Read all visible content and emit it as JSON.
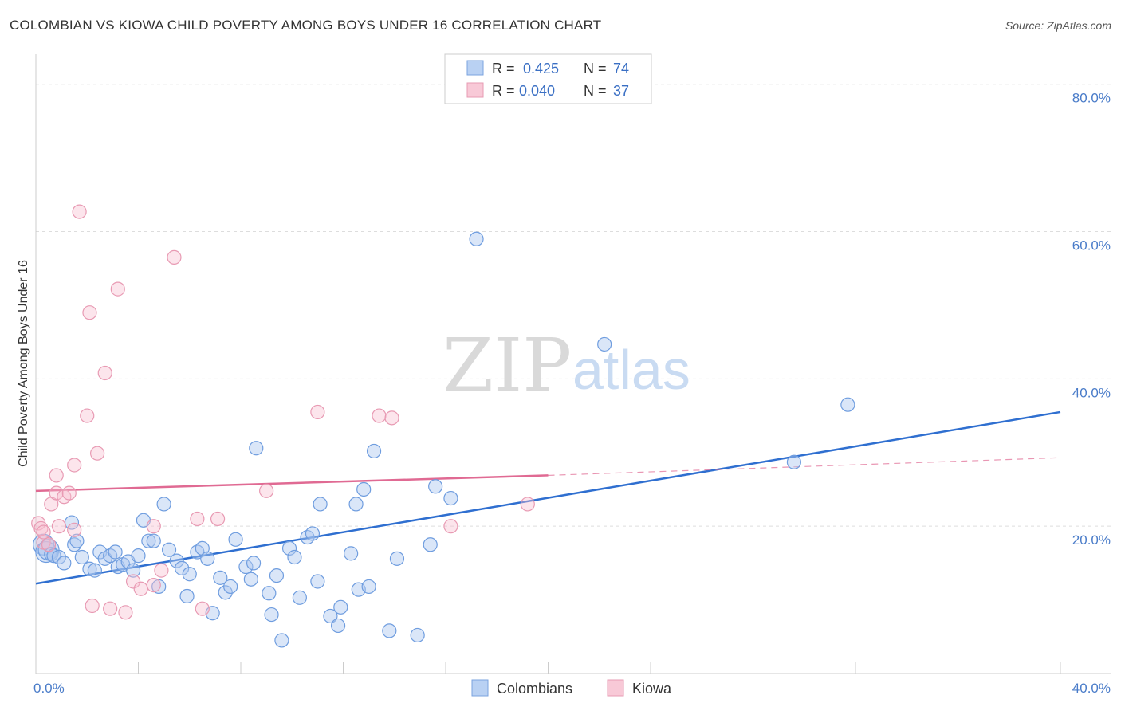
{
  "title": "COLOMBIAN VS KIOWA CHILD POVERTY AMONG BOYS UNDER 16 CORRELATION CHART",
  "source": "Source: ZipAtlas.com",
  "watermark": {
    "zip": "ZIP",
    "atlas": "atlas"
  },
  "legend_top": [
    {
      "r_label": "R =",
      "r_value": "0.425",
      "n_label": "N =",
      "n_value": "74"
    },
    {
      "r_label": "R =",
      "r_value": "0.040",
      "n_label": "N =",
      "n_value": "37"
    }
  ],
  "chart_data": {
    "type": "scatter",
    "ylabel": "Child Poverty Among Boys Under 16",
    "x_tick_labels": [
      "0.0%",
      "40.0%"
    ],
    "y_tick_labels": [
      "20.0%",
      "40.0%",
      "60.0%",
      "80.0%"
    ],
    "xlim": [
      0,
      40
    ],
    "ylim": [
      0,
      83
    ],
    "grid": true,
    "legend_position": "top-center",
    "colors": {
      "colombians": "#5b8fd9",
      "kiowa": "#e88aa8",
      "blue_line": "#2f6fd0",
      "pink_line": "#e06a93"
    },
    "series": [
      {
        "name": "Colombians",
        "trend": {
          "x0": 0,
          "y0": 12.2,
          "x1": 40,
          "y1": 35.5
        },
        "points": [
          [
            0.3,
            17.5
          ],
          [
            0.4,
            16.5
          ],
          [
            0.5,
            16.8
          ],
          [
            0.6,
            16.2
          ],
          [
            0.7,
            16.0
          ],
          [
            0.9,
            15.8
          ],
          [
            1.1,
            15.0
          ],
          [
            1.4,
            20.5
          ],
          [
            1.5,
            17.5
          ],
          [
            1.6,
            18.0
          ],
          [
            1.8,
            15.8
          ],
          [
            2.1,
            14.2
          ],
          [
            2.3,
            14.0
          ],
          [
            2.5,
            16.5
          ],
          [
            2.7,
            15.6
          ],
          [
            2.9,
            16.0
          ],
          [
            3.1,
            16.5
          ],
          [
            3.2,
            14.5
          ],
          [
            3.4,
            14.8
          ],
          [
            3.6,
            15.2
          ],
          [
            3.8,
            14.0
          ],
          [
            4.0,
            16.0
          ],
          [
            4.2,
            20.8
          ],
          [
            4.4,
            18.0
          ],
          [
            4.6,
            18.0
          ],
          [
            4.8,
            11.8
          ],
          [
            5.0,
            23.0
          ],
          [
            5.2,
            16.8
          ],
          [
            5.5,
            15.3
          ],
          [
            5.7,
            14.3
          ],
          [
            5.9,
            10.5
          ],
          [
            6.0,
            13.5
          ],
          [
            6.3,
            16.5
          ],
          [
            6.5,
            17.0
          ],
          [
            6.7,
            15.6
          ],
          [
            6.9,
            8.2
          ],
          [
            7.2,
            13.0
          ],
          [
            7.4,
            11.0
          ],
          [
            7.6,
            11.8
          ],
          [
            7.8,
            18.2
          ],
          [
            8.2,
            14.5
          ],
          [
            8.4,
            12.8
          ],
          [
            8.5,
            15.0
          ],
          [
            8.6,
            30.6
          ],
          [
            9.1,
            10.9
          ],
          [
            9.2,
            8.0
          ],
          [
            9.4,
            13.3
          ],
          [
            9.6,
            4.5
          ],
          [
            9.9,
            17.0
          ],
          [
            10.1,
            15.8
          ],
          [
            10.3,
            10.3
          ],
          [
            10.6,
            18.5
          ],
          [
            10.8,
            19.0
          ],
          [
            11.0,
            12.5
          ],
          [
            11.1,
            23.0
          ],
          [
            11.5,
            7.8
          ],
          [
            11.8,
            6.5
          ],
          [
            11.9,
            9.0
          ],
          [
            12.3,
            16.3
          ],
          [
            12.5,
            23.0
          ],
          [
            12.6,
            11.4
          ],
          [
            12.8,
            25.0
          ],
          [
            13.0,
            11.8
          ],
          [
            13.2,
            30.2
          ],
          [
            13.8,
            5.8
          ],
          [
            14.1,
            15.6
          ],
          [
            14.9,
            5.2
          ],
          [
            15.4,
            17.5
          ],
          [
            15.6,
            25.4
          ],
          [
            16.2,
            23.8
          ],
          [
            17.2,
            59.0
          ],
          [
            22.2,
            44.7
          ],
          [
            29.6,
            28.7
          ],
          [
            31.7,
            36.5
          ]
        ]
      },
      {
        "name": "Kiowa",
        "trend": {
          "x0": 0,
          "y0": 24.8,
          "x1": 20,
          "y1": 26.9
        },
        "trend_dashed": {
          "x0": 20,
          "y0": 26.9,
          "x1": 40,
          "y1": 29.3
        },
        "points": [
          [
            0.1,
            20.4
          ],
          [
            0.2,
            19.7
          ],
          [
            0.3,
            17.8
          ],
          [
            0.5,
            17.5
          ],
          [
            0.6,
            23.0
          ],
          [
            0.8,
            24.5
          ],
          [
            0.8,
            26.9
          ],
          [
            0.9,
            20.0
          ],
          [
            1.1,
            24.0
          ],
          [
            1.3,
            24.5
          ],
          [
            1.5,
            19.5
          ],
          [
            1.5,
            28.3
          ],
          [
            1.7,
            62.7
          ],
          [
            2.0,
            35.0
          ],
          [
            2.1,
            49.0
          ],
          [
            2.2,
            9.2
          ],
          [
            2.4,
            29.9
          ],
          [
            2.7,
            40.8
          ],
          [
            2.9,
            8.8
          ],
          [
            3.2,
            52.2
          ],
          [
            3.5,
            8.3
          ],
          [
            3.8,
            12.5
          ],
          [
            4.1,
            11.5
          ],
          [
            4.6,
            20.0
          ],
          [
            4.6,
            12.0
          ],
          [
            4.9,
            14.0
          ],
          [
            5.4,
            56.5
          ],
          [
            6.3,
            21.0
          ],
          [
            6.5,
            8.8
          ],
          [
            7.1,
            21.0
          ],
          [
            9.0,
            24.8
          ],
          [
            11.0,
            35.5
          ],
          [
            13.4,
            35.0
          ],
          [
            13.9,
            34.7
          ],
          [
            16.2,
            20.0
          ],
          [
            19.2,
            23.0
          ],
          [
            0.3,
            19.2
          ]
        ]
      }
    ]
  },
  "legend_bottom": [
    {
      "label": "Colombians"
    },
    {
      "label": "Kiowa"
    }
  ]
}
